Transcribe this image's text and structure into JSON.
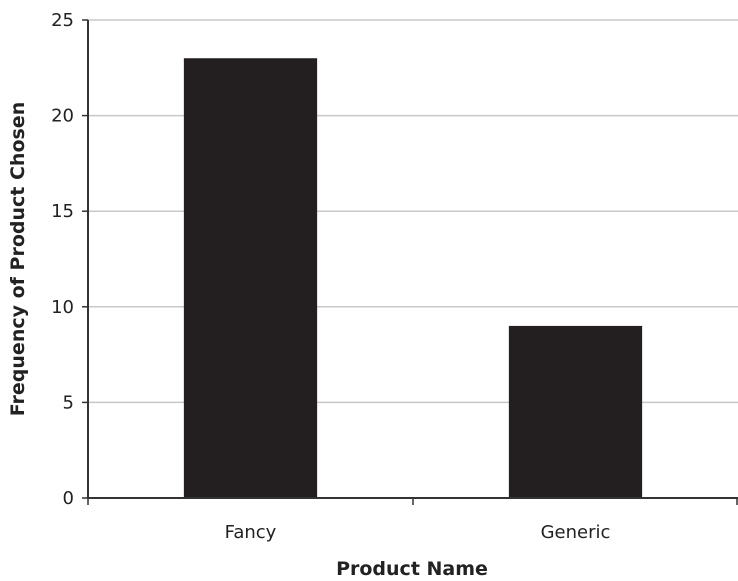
{
  "chart_data": {
    "type": "bar",
    "categories": [
      "Fancy",
      "Generic"
    ],
    "values": [
      23,
      9
    ],
    "xlabel": "Product Name",
    "ylabel": "Frequency of Product Chosen",
    "ylim": [
      0,
      25
    ],
    "yticks": [
      0,
      5,
      10,
      15,
      20,
      25
    ],
    "grid": true,
    "legend": "none",
    "bar_color": "#231f20",
    "grid_color": "#c8c8c8",
    "axis_color": "#333333"
  }
}
